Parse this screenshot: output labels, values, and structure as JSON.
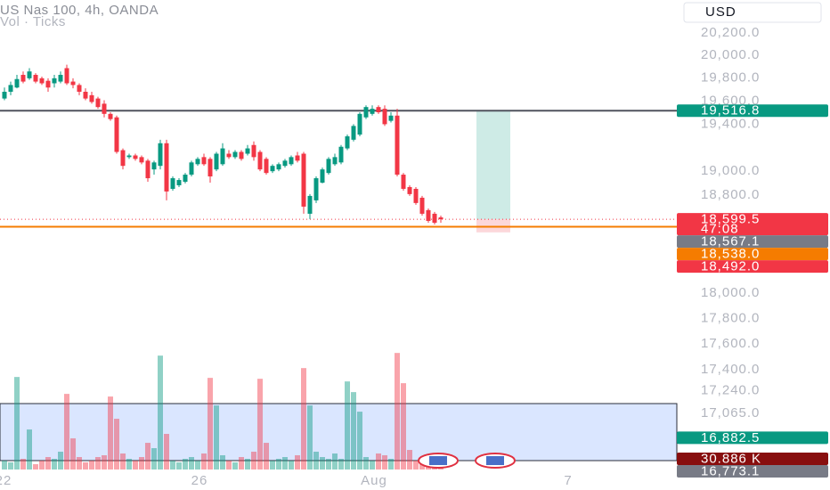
{
  "chart_data": {
    "type": "candlestick",
    "title": "US Nas 100, 4h, OANDA",
    "subtitle": "Vol · Ticks",
    "currency_button": "USD",
    "log_scale": true,
    "ylim": [
      16627,
      20498
    ],
    "yticks": [
      {
        "value": 20200,
        "label": "20,200.0"
      },
      {
        "value": 20000,
        "label": "20,000.0"
      },
      {
        "value": 19800,
        "label": "19,800.0"
      },
      {
        "value": 19600,
        "label": "19,600.0"
      },
      {
        "value": 19400,
        "label": "19,400.0"
      },
      {
        "value": 19000,
        "label": "19,000.0"
      },
      {
        "value": 18800,
        "label": "18,800.0"
      },
      {
        "value": 18000,
        "label": "18,000.0"
      },
      {
        "value": 17800,
        "label": "17,800.0"
      },
      {
        "value": 17600,
        "label": "17,600.0"
      },
      {
        "value": 17400,
        "label": "17,400.0"
      },
      {
        "value": 17240,
        "label": "17,240.0"
      },
      {
        "value": 17065,
        "label": "17,065.0"
      }
    ],
    "xlabels": [
      "22",
      "26",
      "Aug",
      "7"
    ],
    "up_color": "#089981",
    "down_color": "#f23645",
    "candles": [
      [
        19622,
        19718,
        19607,
        19681
      ],
      [
        19681,
        19770,
        19651,
        19740
      ],
      [
        19718,
        19829,
        19711,
        19792
      ],
      [
        19829,
        19859,
        19755,
        19770
      ],
      [
        19799,
        19888,
        19785,
        19859
      ],
      [
        19829,
        19844,
        19755,
        19770
      ],
      [
        19799,
        19814,
        19740,
        19755
      ],
      [
        19777,
        19799,
        19681,
        19718
      ],
      [
        19755,
        19829,
        19718,
        19799
      ],
      [
        19770,
        19859,
        19755,
        19829
      ],
      [
        19888,
        19918,
        19740,
        19755
      ],
      [
        19770,
        19799,
        19711,
        19740
      ],
      [
        19740,
        19755,
        19651,
        19681
      ],
      [
        19681,
        19711,
        19607,
        19622
      ],
      [
        19651,
        19681,
        19577,
        19592
      ],
      [
        19622,
        19637,
        19533,
        19548
      ],
      [
        19577,
        19607,
        19459,
        19489
      ],
      [
        19489,
        19503,
        19429,
        19444
      ],
      [
        19459,
        19474,
        19148,
        19163
      ],
      [
        19178,
        19193,
        19015,
        19045
      ],
      [
        19119,
        19148,
        19104,
        19133
      ],
      [
        19133,
        19148,
        19089,
        19104
      ],
      [
        19119,
        19133,
        19059,
        19074
      ],
      [
        19089,
        19104,
        18911,
        18941
      ],
      [
        19015,
        19089,
        18971,
        19074
      ],
      [
        19045,
        19267,
        19015,
        19237
      ],
      [
        19237,
        19267,
        18756,
        18830
      ],
      [
        18852,
        18956,
        18837,
        18941
      ],
      [
        18882,
        18941,
        18867,
        18926
      ],
      [
        18911,
        18985,
        18897,
        18971
      ],
      [
        18971,
        19089,
        18956,
        19074
      ],
      [
        19059,
        19119,
        19045,
        19104
      ],
      [
        19119,
        19148,
        19045,
        19059
      ],
      [
        19104,
        19119,
        18904,
        18956
      ],
      [
        19015,
        19163,
        19000,
        19148
      ],
      [
        19059,
        19237,
        19045,
        19193
      ],
      [
        19148,
        19178,
        19104,
        19119
      ],
      [
        19119,
        19178,
        19104,
        19163
      ],
      [
        19163,
        19178,
        19089,
        19104
      ],
      [
        19148,
        19222,
        19133,
        19193
      ],
      [
        19222,
        19252,
        19089,
        19119
      ],
      [
        19163,
        19178,
        19000,
        19015
      ],
      [
        19104,
        19119,
        18971,
        18985
      ],
      [
        19000,
        19059,
        18985,
        19045
      ],
      [
        19015,
        19074,
        19000,
        19059
      ],
      [
        19045,
        19104,
        19030,
        19089
      ],
      [
        19059,
        19133,
        19045,
        19119
      ],
      [
        19133,
        19163,
        19074,
        19089
      ],
      [
        19148,
        19163,
        18645,
        18704
      ],
      [
        18645,
        18808,
        18601,
        18793
      ],
      [
        18756,
        18956,
        18734,
        18941
      ],
      [
        18904,
        19030,
        18897,
        19015
      ],
      [
        18985,
        19119,
        18971,
        19104
      ],
      [
        19059,
        19148,
        19045,
        19119
      ],
      [
        19074,
        19222,
        19059,
        19207
      ],
      [
        19193,
        19311,
        19178,
        19296
      ],
      [
        19267,
        19400,
        19252,
        19385
      ],
      [
        19311,
        19503,
        19296,
        19489
      ],
      [
        19459,
        19563,
        19444,
        19548
      ],
      [
        19489,
        19563,
        19474,
        19533
      ],
      [
        19548,
        19563,
        19489,
        19503
      ],
      [
        19533,
        19563,
        19385,
        19400
      ],
      [
        19429,
        19503,
        19415,
        19474
      ],
      [
        19474,
        19533,
        18956,
        18971
      ],
      [
        18971,
        18985,
        18837,
        18852
      ],
      [
        18867,
        18882,
        18793,
        18808
      ],
      [
        18852,
        18867,
        18719,
        18734
      ],
      [
        18778,
        18793,
        18630,
        18645
      ],
      [
        18675,
        18689,
        18571,
        18586
      ],
      [
        18645,
        18660,
        18556,
        18571
      ],
      [
        18615,
        18630,
        18571,
        18599.5
      ]
    ],
    "volume_ylim": [
      0,
      1000000
    ],
    "volumes": [
      25700,
      20600,
      267700,
      30900,
      115800,
      15400,
      25700,
      36000,
      30900,
      51500,
      218800,
      90100,
      36000,
      20600,
      25700,
      36000,
      41200,
      211100,
      146700,
      46300,
      30900,
      25700,
      36000,
      77200,
      61800,
      329500,
      103000,
      25700,
      20600,
      30900,
      36000,
      25700,
      46300,
      265100,
      185300,
      41200,
      25700,
      20600,
      36000,
      30900,
      51500,
      262500,
      77200,
      25700,
      30900,
      36000,
      25700,
      41200,
      293400,
      185300,
      51500,
      36000,
      30900,
      46300,
      30900,
      254800,
      223900,
      167300,
      36000,
      25700,
      46300,
      41200,
      30900,
      337200,
      249700,
      56600,
      25700,
      20600,
      15400,
      10300,
      10300
    ],
    "price_tags": [
      {
        "value": 19516.8,
        "label": "19,516.8",
        "color": "#089981"
      },
      {
        "value": 18599.5,
        "label": "18,599.5",
        "timer": "47:08",
        "color": "#f23645"
      },
      {
        "value": 18567.1,
        "label": "18,567.1",
        "color": "#787b86"
      },
      {
        "value": 18538.0,
        "label": "18,538.0",
        "color": "#f57c00"
      },
      {
        "value": 18492.0,
        "label": "18,492.0",
        "color": "#f23645"
      },
      {
        "value": 16882.5,
        "label": "16,882.5",
        "color": "#089981"
      },
      {
        "value": 30886,
        "label": "30.886 K",
        "color": "#880e0e",
        "axis": "volume"
      },
      {
        "value": 16773.1,
        "label": "16,773.1",
        "color": "#787b86"
      }
    ]
  }
}
